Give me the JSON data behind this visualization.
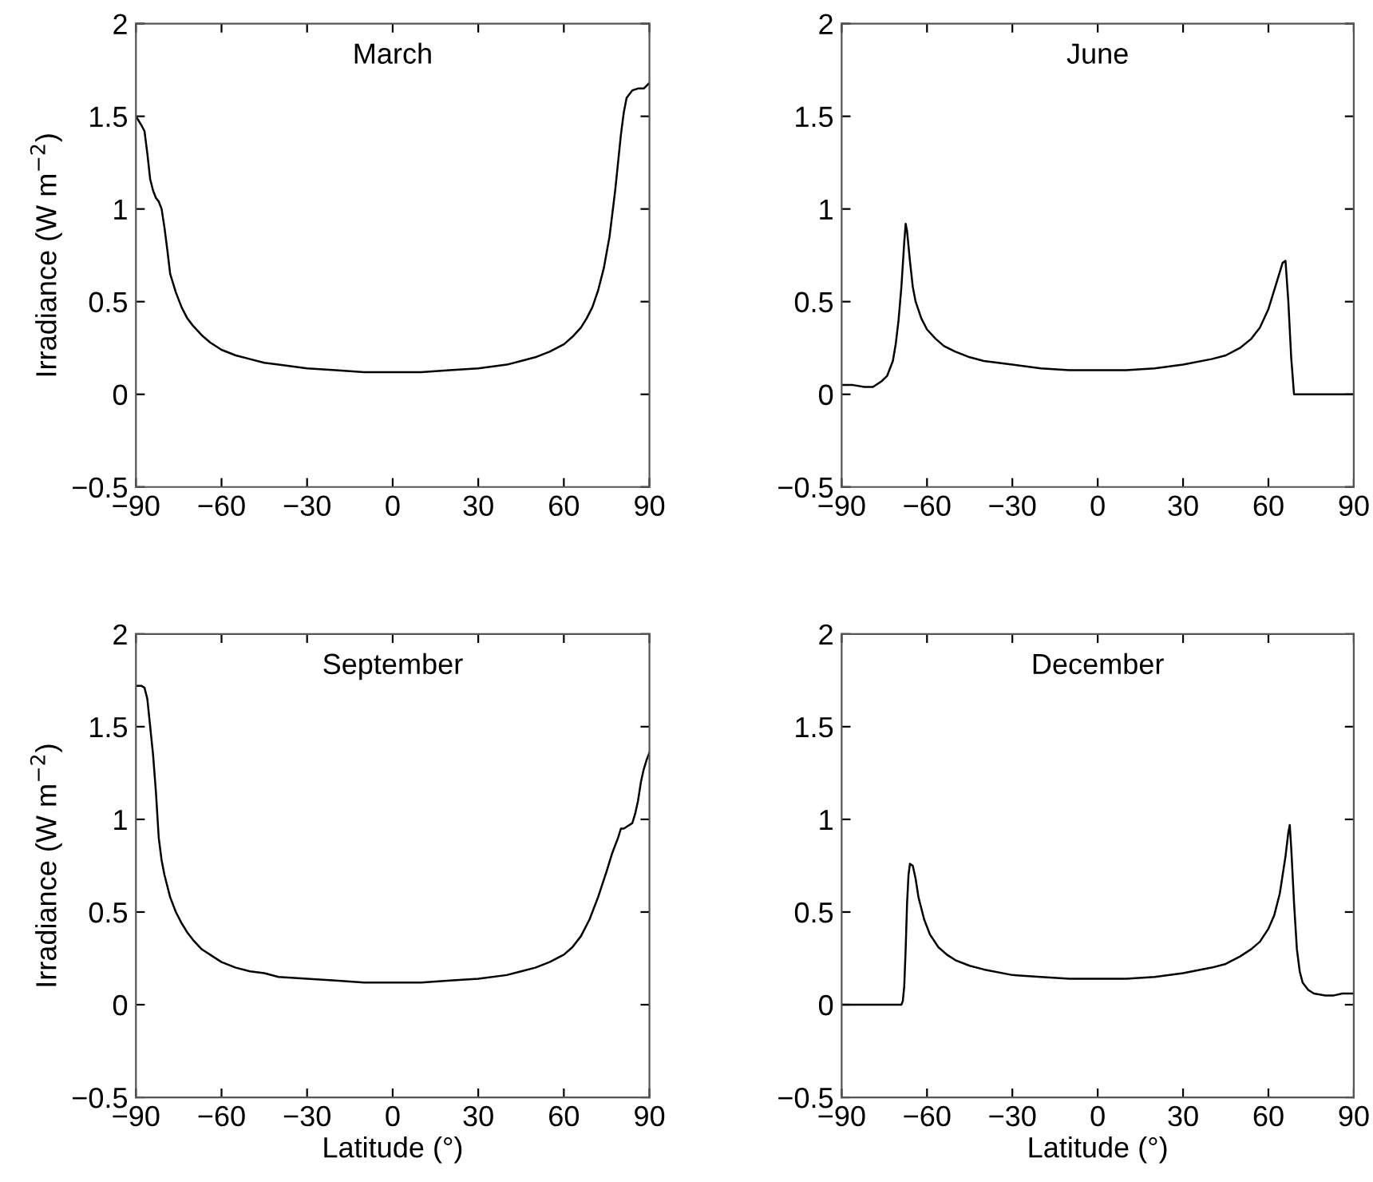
{
  "chart_data": [
    {
      "type": "line",
      "title": "March",
      "ylabel": "Irradiance (W m$^{−2}$)",
      "xlim": [
        -90,
        90
      ],
      "ylim": [
        -0.5,
        2
      ],
      "xticks": [
        -90,
        -60,
        -30,
        0,
        30,
        60,
        90
      ],
      "yticks": [
        -0.5,
        0,
        0.5,
        1,
        1.5,
        2
      ],
      "series": [
        {
          "color": "#000000",
          "x": [
            -90,
            -88,
            -87,
            -86,
            -85,
            -84,
            -83,
            -82,
            -81,
            -80,
            -79,
            -78,
            -76,
            -74,
            -72,
            -70,
            -67,
            -64,
            -60,
            -55,
            -50,
            -45,
            -40,
            -30,
            -20,
            -10,
            0,
            10,
            20,
            30,
            40,
            45,
            50,
            55,
            60,
            63,
            66,
            68,
            70,
            72,
            74,
            76,
            78,
            79,
            80,
            81,
            82,
            84,
            86,
            88,
            90
          ],
          "values": [
            1.5,
            1.45,
            1.42,
            1.3,
            1.16,
            1.1,
            1.06,
            1.04,
            1.0,
            0.9,
            0.78,
            0.65,
            0.55,
            0.47,
            0.41,
            0.37,
            0.32,
            0.28,
            0.24,
            0.21,
            0.19,
            0.17,
            0.16,
            0.14,
            0.13,
            0.12,
            0.12,
            0.12,
            0.13,
            0.14,
            0.16,
            0.18,
            0.2,
            0.23,
            0.27,
            0.31,
            0.36,
            0.41,
            0.47,
            0.56,
            0.68,
            0.85,
            1.1,
            1.25,
            1.4,
            1.52,
            1.6,
            1.64,
            1.65,
            1.65,
            1.68
          ]
        }
      ]
    },
    {
      "type": "line",
      "title": "June",
      "xlim": [
        -90,
        90
      ],
      "ylim": [
        -0.5,
        2
      ],
      "xticks": [
        -90,
        -60,
        -30,
        0,
        30,
        60,
        90
      ],
      "yticks": [
        -0.5,
        0,
        0.5,
        1,
        1.5,
        2
      ],
      "series": [
        {
          "color": "#000000",
          "x": [
            -90,
            -86,
            -82,
            -79,
            -76,
            -74,
            -72,
            -71,
            -70,
            -69,
            -68,
            -67.5,
            -67,
            -66,
            -65,
            -64,
            -62,
            -60,
            -57,
            -54,
            -50,
            -45,
            -40,
            -30,
            -20,
            -10,
            0,
            10,
            20,
            30,
            40,
            45,
            50,
            54,
            57,
            60,
            62,
            64,
            65,
            66,
            67,
            68,
            69,
            90
          ],
          "values": [
            0.05,
            0.05,
            0.04,
            0.04,
            0.07,
            0.1,
            0.18,
            0.27,
            0.4,
            0.58,
            0.82,
            0.92,
            0.88,
            0.72,
            0.58,
            0.5,
            0.41,
            0.35,
            0.3,
            0.26,
            0.23,
            0.2,
            0.18,
            0.16,
            0.14,
            0.13,
            0.13,
            0.13,
            0.14,
            0.16,
            0.19,
            0.21,
            0.25,
            0.3,
            0.36,
            0.46,
            0.56,
            0.66,
            0.71,
            0.72,
            0.5,
            0.2,
            0.0,
            0.0
          ]
        }
      ]
    },
    {
      "type": "line",
      "title": "September",
      "xlabel": "Latitude (°)",
      "ylabel": "Irradiance (W m$^{−2}$)",
      "xlim": [
        -90,
        90
      ],
      "ylim": [
        -0.5,
        2
      ],
      "xticks": [
        -90,
        -60,
        -30,
        0,
        30,
        60,
        90
      ],
      "yticks": [
        -0.5,
        0,
        0.5,
        1,
        1.5,
        2
      ],
      "series": [
        {
          "color": "#000000",
          "x": [
            -90,
            -88,
            -87,
            -86,
            -85,
            -84,
            -83,
            -82,
            -81,
            -80,
            -78,
            -76,
            -74,
            -72,
            -70,
            -67,
            -64,
            -60,
            -55,
            -50,
            -45,
            -40,
            -30,
            -20,
            -10,
            0,
            10,
            20,
            30,
            40,
            45,
            50,
            55,
            60,
            63,
            66,
            69,
            72,
            75,
            77,
            79,
            80,
            81,
            82,
            84,
            85,
            86,
            87,
            88,
            89,
            90
          ],
          "values": [
            1.72,
            1.72,
            1.71,
            1.65,
            1.5,
            1.35,
            1.15,
            0.9,
            0.78,
            0.7,
            0.58,
            0.5,
            0.44,
            0.39,
            0.35,
            0.3,
            0.27,
            0.23,
            0.2,
            0.18,
            0.17,
            0.15,
            0.14,
            0.13,
            0.12,
            0.12,
            0.12,
            0.13,
            0.14,
            0.16,
            0.18,
            0.2,
            0.23,
            0.27,
            0.31,
            0.37,
            0.46,
            0.58,
            0.72,
            0.82,
            0.9,
            0.95,
            0.95,
            0.96,
            0.98,
            1.03,
            1.1,
            1.2,
            1.27,
            1.32,
            1.36
          ]
        }
      ]
    },
    {
      "type": "line",
      "title": "December",
      "xlabel": "Latitude (°)",
      "xlim": [
        -90,
        90
      ],
      "ylim": [
        -0.5,
        2
      ],
      "xticks": [
        -90,
        -60,
        -30,
        0,
        30,
        60,
        90
      ],
      "yticks": [
        -0.5,
        0,
        0.5,
        1,
        1.5,
        2
      ],
      "series": [
        {
          "color": "#000000",
          "x": [
            -90,
            -69,
            -68.5,
            -68,
            -67.5,
            -67,
            -66.5,
            -66,
            -65,
            -64,
            -63,
            -61,
            -59,
            -56,
            -53,
            -50,
            -45,
            -40,
            -30,
            -20,
            -10,
            0,
            10,
            20,
            30,
            40,
            45,
            50,
            54,
            57,
            60,
            62,
            64,
            65,
            66,
            67,
            67.5,
            68,
            69,
            70,
            71,
            72,
            74,
            76,
            80,
            83,
            86,
            90
          ],
          "values": [
            0,
            0,
            0.02,
            0.1,
            0.3,
            0.55,
            0.7,
            0.76,
            0.75,
            0.68,
            0.58,
            0.46,
            0.38,
            0.31,
            0.27,
            0.24,
            0.21,
            0.19,
            0.16,
            0.15,
            0.14,
            0.14,
            0.14,
            0.15,
            0.17,
            0.2,
            0.22,
            0.26,
            0.3,
            0.34,
            0.41,
            0.48,
            0.6,
            0.7,
            0.8,
            0.93,
            0.97,
            0.85,
            0.55,
            0.3,
            0.18,
            0.12,
            0.08,
            0.06,
            0.05,
            0.05,
            0.06,
            0.06
          ]
        }
      ]
    }
  ]
}
